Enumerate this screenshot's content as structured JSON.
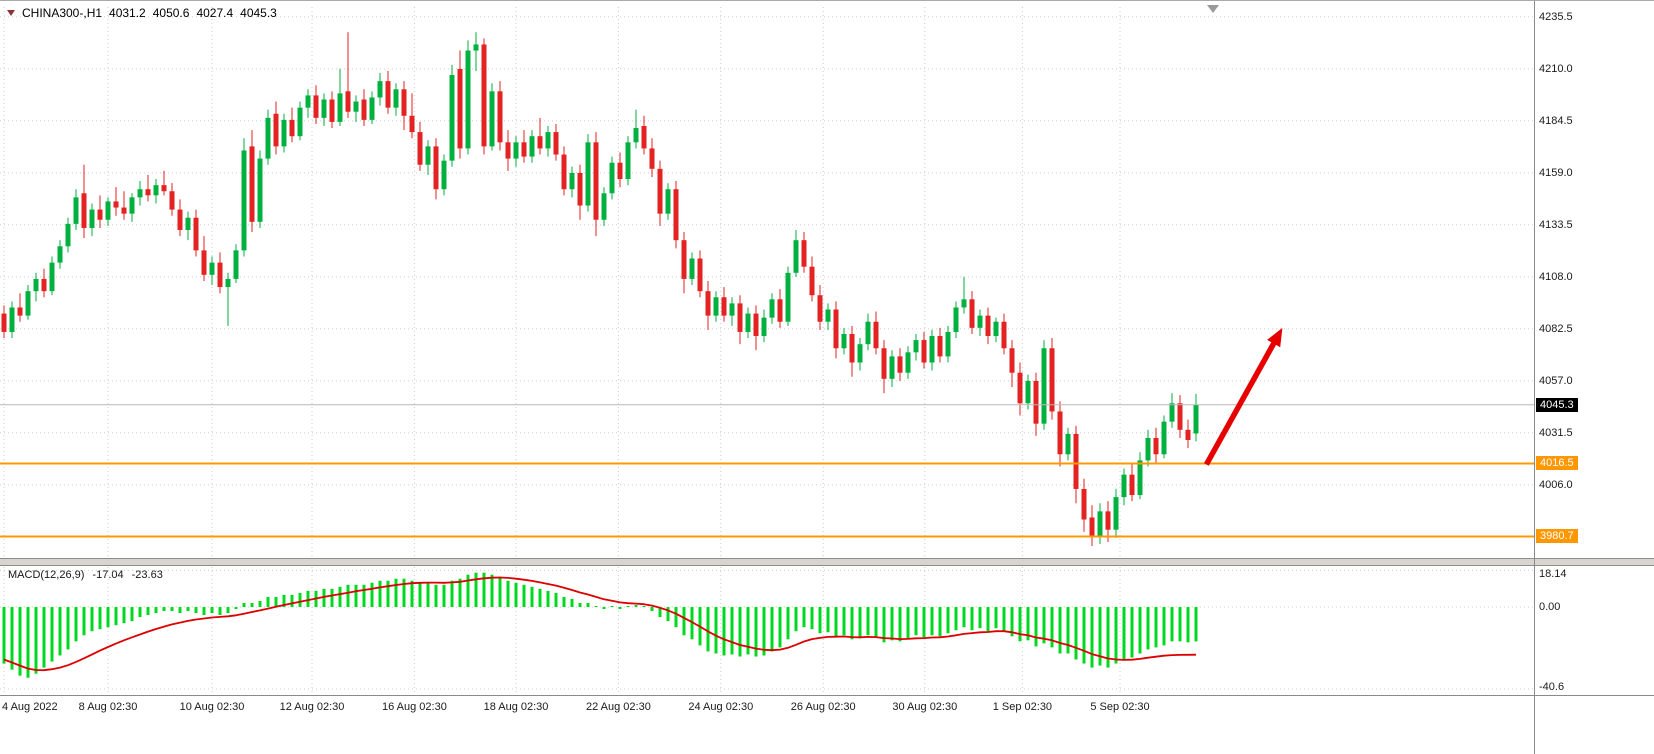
{
  "header": {
    "symbol_tf": "CHINA300-,H1",
    "open": "4031.2",
    "high": "4050.6",
    "low": "4027.4",
    "close": "4045.3"
  },
  "macd_header": {
    "name": "MACD(12,26,9)",
    "macd_value": "-17.04",
    "signal_value": "-23.63"
  },
  "icons": {
    "symbol_dropdown": "triangle-down",
    "chart_shift": "triangle-down"
  },
  "price_axis": {
    "gridline_labels": [
      "4235.5",
      "4210.0",
      "4184.5",
      "4159.0",
      "4133.5",
      "4108.0",
      "4082.5",
      "4057.0",
      "4031.5",
      "4006.0"
    ],
    "current_price_label": "4045.3",
    "level_labels": [
      "4016.5",
      "3980.7"
    ]
  },
  "macd_axis": [
    "18.14",
    "0.00",
    "-40.6"
  ],
  "time_axis": [
    {
      "label": "4 Aug 2022",
      "i": 0
    },
    {
      "label": "8 Aug 02:30",
      "i": 13
    },
    {
      "label": "10 Aug 02:30",
      "i": 26
    },
    {
      "label": "12 Aug 02:30",
      "i": 38.5
    },
    {
      "label": "16 Aug 02:30",
      "i": 51.3
    },
    {
      "label": "18 Aug 02:30",
      "i": 64
    },
    {
      "label": "22 Aug 02:30",
      "i": 76.8
    },
    {
      "label": "24 Aug 02:30",
      "i": 89.6
    },
    {
      "label": "26 Aug 02:30",
      "i": 102.4
    },
    {
      "label": "30 Aug 02:30",
      "i": 115.1
    },
    {
      "label": "1 Sep 02:30",
      "i": 127.3
    },
    {
      "label": "5 Sep 02:30",
      "i": 139.5
    }
  ],
  "colors": {
    "up": "#00B140",
    "down": "#E32222",
    "hist": "#00D91F",
    "signal": "#DD0000",
    "level": "#FF9800",
    "grid": "#CBCBCB",
    "current_line": "#B8B8B8",
    "arrow": "#E60000",
    "current_badge_bg": "#000000"
  },
  "chart_data": {
    "type": "candlestick",
    "title": "CHINA300-,H1",
    "symbol": "CHINA300-",
    "timeframe": "H1",
    "ohlc_current": {
      "open": 4031.2,
      "high": 4050.6,
      "low": 4027.4,
      "close": 4045.3
    },
    "price_gridlines": [
      4235.5,
      4210.0,
      4184.5,
      4159.0,
      4133.5,
      4108.0,
      4082.5,
      4057.0,
      4031.5,
      4006.0
    ],
    "current_price": 4045.3,
    "hlines": [
      4016.5,
      3980.7
    ],
    "ylim": [
      3970,
      4243
    ],
    "candles_ohlc": [
      [
        4090,
        4094,
        4078,
        4081
      ],
      [
        4081,
        4096,
        4078,
        4093
      ],
      [
        4093,
        4100,
        4086,
        4089
      ],
      [
        4089,
        4104,
        4087,
        4101
      ],
      [
        4101,
        4110,
        4096,
        4107
      ],
      [
        4107,
        4112,
        4098,
        4101
      ],
      [
        4101,
        4118,
        4099,
        4115
      ],
      [
        4115,
        4126,
        4112,
        4123
      ],
      [
        4123,
        4137,
        4120,
        4134
      ],
      [
        4134,
        4151,
        4131,
        4147
      ],
      [
        4149,
        4163,
        4127,
        4132
      ],
      [
        4132,
        4144,
        4128,
        4141
      ],
      [
        4141,
        4148,
        4132,
        4136
      ],
      [
        4136,
        4147,
        4133,
        4145
      ],
      [
        4145,
        4152,
        4138,
        4142
      ],
      [
        4142,
        4150,
        4136,
        4139
      ],
      [
        4139,
        4149,
        4135,
        4147
      ],
      [
        4147,
        4155,
        4143,
        4151
      ],
      [
        4151,
        4158,
        4145,
        4148
      ],
      [
        4148,
        4156,
        4144,
        4153
      ],
      [
        4153,
        4160,
        4148,
        4150
      ],
      [
        4150,
        4154,
        4138,
        4141
      ],
      [
        4141,
        4146,
        4128,
        4131
      ],
      [
        4131,
        4140,
        4126,
        4137
      ],
      [
        4137,
        4141,
        4118,
        4121
      ],
      [
        4121,
        4128,
        4106,
        4109
      ],
      [
        4109,
        4118,
        4104,
        4115
      ],
      [
        4115,
        4120,
        4100,
        4103
      ],
      [
        4103,
        4110,
        4084,
        4107
      ],
      [
        4107,
        4124,
        4105,
        4121
      ],
      [
        4121,
        4176,
        4118,
        4170
      ],
      [
        4172,
        4180,
        4130,
        4135
      ],
      [
        4135,
        4170,
        4132,
        4166
      ],
      [
        4166,
        4190,
        4163,
        4186
      ],
      [
        4188,
        4194,
        4168,
        4172
      ],
      [
        4172,
        4188,
        4169,
        4185
      ],
      [
        4185,
        4191,
        4174,
        4177
      ],
      [
        4177,
        4194,
        4175,
        4191
      ],
      [
        4191,
        4200,
        4186,
        4197
      ],
      [
        4197,
        4202,
        4183,
        4186
      ],
      [
        4186,
        4198,
        4182,
        4195
      ],
      [
        4195,
        4199,
        4181,
        4184
      ],
      [
        4184,
        4210,
        4182,
        4198
      ],
      [
        4199,
        4228,
        4186,
        4189
      ],
      [
        4189,
        4197,
        4184,
        4194
      ],
      [
        4195,
        4200,
        4182,
        4185
      ],
      [
        4185,
        4199,
        4183,
        4196
      ],
      [
        4196,
        4208,
        4192,
        4204
      ],
      [
        4204,
        4209,
        4188,
        4191
      ],
      [
        4191,
        4203,
        4187,
        4200
      ],
      [
        4200,
        4204,
        4180,
        4187
      ],
      [
        4187,
        4198,
        4176,
        4179
      ],
      [
        4179,
        4184,
        4160,
        4163
      ],
      [
        4163,
        4175,
        4158,
        4172
      ],
      [
        4172,
        4176,
        4146,
        4151
      ],
      [
        4151,
        4168,
        4148,
        4165
      ],
      [
        4165,
        4212,
        4162,
        4207
      ],
      [
        4210,
        4219,
        4166,
        4171
      ],
      [
        4171,
        4224,
        4168,
        4219
      ],
      [
        4219,
        4228,
        4209,
        4222
      ],
      [
        4222,
        4225,
        4168,
        4172
      ],
      [
        4172,
        4203,
        4170,
        4199
      ],
      [
        4199,
        4204,
        4170,
        4174
      ],
      [
        4174,
        4180,
        4160,
        4166
      ],
      [
        4166,
        4177,
        4162,
        4174
      ],
      [
        4174,
        4180,
        4164,
        4167
      ],
      [
        4167,
        4180,
        4164,
        4177
      ],
      [
        4177,
        4186,
        4168,
        4171
      ],
      [
        4171,
        4182,
        4167,
        4179
      ],
      [
        4179,
        4183,
        4165,
        4168
      ],
      [
        4168,
        4172,
        4148,
        4151
      ],
      [
        4151,
        4162,
        4147,
        4159
      ],
      [
        4159,
        4163,
        4136,
        4143
      ],
      [
        4143,
        4178,
        4140,
        4174
      ],
      [
        4174,
        4179,
        4128,
        4136
      ],
      [
        4136,
        4152,
        4133,
        4149
      ],
      [
        4149,
        4167,
        4146,
        4164
      ],
      [
        4164,
        4169,
        4152,
        4156
      ],
      [
        4156,
        4177,
        4153,
        4174
      ],
      [
        4174,
        4190,
        4171,
        4181
      ],
      [
        4182,
        4187,
        4168,
        4171
      ],
      [
        4171,
        4176,
        4157,
        4161
      ],
      [
        4161,
        4165,
        4133,
        4139
      ],
      [
        4139,
        4154,
        4136,
        4151
      ],
      [
        4151,
        4155,
        4122,
        4126
      ],
      [
        4126,
        4130,
        4100,
        4107
      ],
      [
        4107,
        4120,
        4104,
        4117
      ],
      [
        4117,
        4121,
        4098,
        4101
      ],
      [
        4101,
        4106,
        4082,
        4089
      ],
      [
        4089,
        4101,
        4086,
        4098
      ],
      [
        4098,
        4103,
        4086,
        4089
      ],
      [
        4089,
        4098,
        4084,
        4095
      ],
      [
        4095,
        4099,
        4075,
        4081
      ],
      [
        4081,
        4093,
        4078,
        4090
      ],
      [
        4090,
        4094,
        4072,
        4079
      ],
      [
        4079,
        4092,
        4076,
        4088
      ],
      [
        4088,
        4100,
        4085,
        4097
      ],
      [
        4097,
        4102,
        4083,
        4086
      ],
      [
        4086,
        4113,
        4084,
        4110
      ],
      [
        4110,
        4131,
        4108,
        4126
      ],
      [
        4126,
        4130,
        4110,
        4113
      ],
      [
        4113,
        4118,
        4096,
        4099
      ],
      [
        4099,
        4104,
        4082,
        4086
      ],
      [
        4086,
        4095,
        4082,
        4092
      ],
      [
        4092,
        4096,
        4068,
        4073
      ],
      [
        4073,
        4083,
        4070,
        4080
      ],
      [
        4080,
        4084,
        4059,
        4066
      ],
      [
        4066,
        4078,
        4062,
        4075
      ],
      [
        4075,
        4090,
        4072,
        4086
      ],
      [
        4086,
        4091,
        4070,
        4073
      ],
      [
        4073,
        4077,
        4051,
        4058
      ],
      [
        4058,
        4072,
        4054,
        4069
      ],
      [
        4069,
        4073,
        4057,
        4061
      ],
      [
        4061,
        4074,
        4058,
        4071
      ],
      [
        4071,
        4080,
        4067,
        4077
      ],
      [
        4077,
        4081,
        4063,
        4066
      ],
      [
        4066,
        4082,
        4062,
        4079
      ],
      [
        4079,
        4083,
        4066,
        4069
      ],
      [
        4069,
        4084,
        4066,
        4081
      ],
      [
        4081,
        4096,
        4078,
        4093
      ],
      [
        4093,
        4108,
        4090,
        4097
      ],
      [
        4097,
        4101,
        4080,
        4083
      ],
      [
        4083,
        4092,
        4079,
        4089
      ],
      [
        4089,
        4093,
        4075,
        4079
      ],
      [
        4079,
        4088,
        4076,
        4086
      ],
      [
        4086,
        4090,
        4070,
        4073
      ],
      [
        4073,
        4077,
        4054,
        4061
      ],
      [
        4061,
        4066,
        4040,
        4046
      ],
      [
        4046,
        4060,
        4043,
        4057
      ],
      [
        4057,
        4061,
        4030,
        4036
      ],
      [
        4036,
        4077,
        4033,
        4073
      ],
      [
        4073,
        4078,
        4038,
        4042
      ],
      [
        4042,
        4047,
        4015,
        4021
      ],
      [
        4021,
        4034,
        4018,
        4031
      ],
      [
        4031,
        4035,
        3997,
        4004
      ],
      [
        4004,
        4009,
        3983,
        3989
      ],
      [
        3990,
        3996,
        3976,
        3981
      ],
      [
        3981,
        3997,
        3977,
        3993
      ],
      [
        3993,
        3998,
        3978,
        3984
      ],
      [
        3984,
        4004,
        3980,
        4000
      ],
      [
        4000,
        4014,
        3996,
        4011
      ],
      [
        4011,
        4016,
        3998,
        4001
      ],
      [
        4001,
        4022,
        3999,
        4018
      ],
      [
        4018,
        4033,
        4015,
        4029
      ],
      [
        4029,
        4034,
        4017,
        4021
      ],
      [
        4021,
        4040,
        4019,
        4037
      ],
      [
        4037,
        4051,
        4034,
        4046
      ],
      [
        4046,
        4050,
        4029,
        4033
      ],
      [
        4033,
        4038,
        4024,
        4028
      ],
      [
        4031.2,
        4050.6,
        4027.4,
        4045.3
      ]
    ],
    "macd": {
      "params": "12,26,9",
      "axis": [
        18.14,
        0,
        -40.6
      ],
      "ylim": [
        -40.6,
        18.14
      ],
      "histogram": [
        -28,
        -31,
        -34,
        -35,
        -33,
        -30,
        -27,
        -24,
        -21,
        -17,
        -14,
        -12,
        -11,
        -10,
        -9,
        -8,
        -7,
        -5,
        -4,
        -3,
        -2,
        -2,
        -3,
        -2,
        -3,
        -4,
        -3,
        -4,
        -3,
        -1,
        2,
        2,
        3,
        5,
        5,
        6,
        6,
        7,
        8,
        8,
        9,
        9,
        10,
        11,
        11,
        11,
        12,
        13,
        13,
        14,
        14,
        13,
        12,
        12,
        11,
        11,
        13,
        14,
        16,
        17,
        17,
        16,
        15,
        13,
        12,
        11,
        10,
        9,
        8,
        7,
        5,
        4,
        2,
        2,
        0.5,
        -1,
        0.5,
        -1,
        0.5,
        1,
        0.5,
        -2,
        -5,
        -7,
        -10,
        -14,
        -16,
        -19,
        -22,
        -23,
        -24,
        -23.5,
        -24.5,
        -23.5,
        -24.5,
        -24,
        -22,
        -20,
        -16,
        -12,
        -10,
        -11,
        -13,
        -12.5,
        -14.5,
        -14,
        -16,
        -15.5,
        -14,
        -15,
        -17.5,
        -16.5,
        -17,
        -15.5,
        -14,
        -15,
        -14,
        -14.5,
        -13,
        -11.5,
        -10,
        -11.5,
        -10.5,
        -12,
        -10.5,
        -12,
        -14.5,
        -17,
        -16.5,
        -19.5,
        -18,
        -20,
        -23,
        -23,
        -26,
        -28,
        -30,
        -29,
        -30,
        -28,
        -26,
        -25,
        -23,
        -21,
        -20,
        -19,
        -17,
        -17,
        -17.5,
        -17.04
      ],
      "signal": [
        -26,
        -27.5,
        -29,
        -30.5,
        -31.2,
        -31.3,
        -30.8,
        -30,
        -28.8,
        -27.2,
        -25.4,
        -23.5,
        -21.6,
        -19.8,
        -18.1,
        -16.5,
        -15,
        -13.6,
        -12.2,
        -10.9,
        -9.7,
        -8.6,
        -7.7,
        -6.9,
        -6.2,
        -5.7,
        -5.2,
        -4.9,
        -4.6,
        -4.1,
        -3.3,
        -2.5,
        -1.7,
        -0.8,
        0.1,
        1,
        1.8,
        2.6,
        3.4,
        4.2,
        5,
        5.7,
        6.4,
        7.1,
        7.8,
        8.4,
        9,
        9.7,
        10.3,
        10.9,
        11.4,
        11.8,
        12,
        12.1,
        12.1,
        12,
        12.2,
        12.5,
        13.1,
        13.7,
        14.2,
        14.5,
        14.6,
        14.4,
        14,
        13.5,
        12.9,
        12.2,
        11.4,
        10.6,
        9.5,
        8.4,
        7.2,
        6.2,
        5,
        3.8,
        3.1,
        2.3,
        1.9,
        1.7,
        1.4,
        0.7,
        -0.4,
        -1.7,
        -3.3,
        -5.4,
        -7.5,
        -9.7,
        -12.1,
        -14.2,
        -16,
        -17.4,
        -18.8,
        -19.7,
        -20.6,
        -21.2,
        -21.4,
        -21.1,
        -20.2,
        -18.7,
        -17.1,
        -15.9,
        -15.3,
        -14.8,
        -14.7,
        -14.6,
        -14.9,
        -15,
        -14.8,
        -14.9,
        -15.4,
        -15.6,
        -15.9,
        -15.8,
        -15.5,
        -15.4,
        -15.1,
        -15,
        -14.6,
        -14,
        -13.3,
        -12.9,
        -12.5,
        -12.4,
        -12,
        -12,
        -12.5,
        -13.4,
        -14,
        -15.1,
        -15.7,
        -16.5,
        -17.8,
        -18.8,
        -20.2,
        -21.7,
        -23.3,
        -24.4,
        -25.5,
        -26,
        -26.2,
        -26.1,
        -25.7,
        -25.1,
        -24.6,
        -24.1,
        -23.8,
        -23.7,
        -23.65,
        -23.63
      ]
    },
    "trend_arrow": {
      "from_i": 150.3,
      "from_price": 4016.0,
      "to_i": 159.8,
      "to_price": 4083.0
    }
  }
}
